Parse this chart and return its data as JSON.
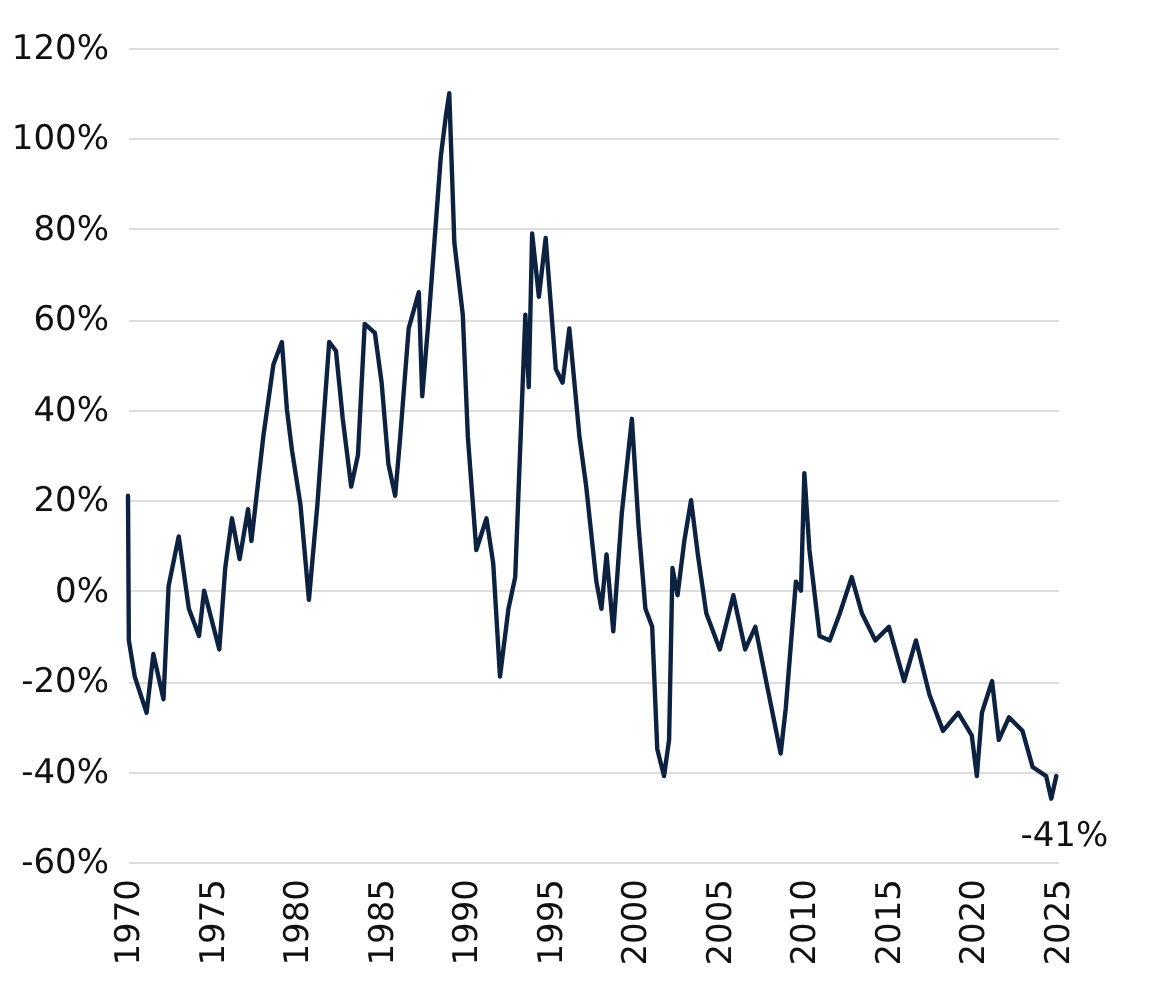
{
  "chart_data": {
    "type": "line",
    "x": [
      1970.0,
      1970.05,
      1970.4,
      1971.1,
      1971.5,
      1972.1,
      1972.4,
      1973.0,
      1973.6,
      1974.2,
      1974.5,
      1975.4,
      1975.75,
      1976.15,
      1976.6,
      1977.1,
      1977.3,
      1978.0,
      1978.6,
      1979.1,
      1979.4,
      1979.7,
      1980.2,
      1980.7,
      1981.2,
      1981.9,
      1982.3,
      1982.7,
      1983.2,
      1983.6,
      1984.0,
      1984.6,
      1985.0,
      1985.4,
      1985.8,
      1986.1,
      1986.6,
      1987.2,
      1987.4,
      1987.8,
      1988.2,
      1988.5,
      1988.8,
      1989.0,
      1989.3,
      1989.8,
      1990.1,
      1990.6,
      1991.2,
      1991.6,
      1992.0,
      1992.5,
      1992.9,
      1993.5,
      1993.7,
      1993.9,
      1994.3,
      1994.7,
      1995.3,
      1995.7,
      1996.1,
      1996.7,
      1997.1,
      1997.7,
      1998.0,
      1998.3,
      1998.7,
      1999.2,
      1999.8,
      2000.2,
      2000.6,
      2001.0,
      2001.3,
      2001.7,
      2002.0,
      2002.2,
      2002.5,
      2002.9,
      2003.3,
      2003.7,
      2004.2,
      2005.0,
      2005.8,
      2006.5,
      2007.1,
      2007.9,
      2008.6,
      2008.9,
      2009.5,
      2009.8,
      2010.0,
      2010.3,
      2010.9,
      2011.5,
      2012.1,
      2012.8,
      2013.4,
      2014.2,
      2015.0,
      2015.9,
      2016.6,
      2017.4,
      2018.2,
      2019.1,
      2019.9,
      2020.2,
      2020.5,
      2021.1,
      2021.5,
      2022.1,
      2022.9,
      2023.5,
      2024.3,
      2024.6,
      2024.9
    ],
    "series": [
      {
        "color": "#0d2240",
        "values": [
          21,
          -11,
          -19,
          -27,
          -14,
          -24,
          1,
          12,
          -4,
          -10,
          0,
          -13,
          5,
          16,
          7,
          18,
          11,
          34,
          50,
          55,
          40,
          31,
          19,
          -2,
          19,
          55,
          53,
          38,
          23,
          30,
          59,
          57,
          46,
          28,
          21,
          34,
          58,
          66,
          43,
          61,
          81,
          96,
          105,
          110,
          77,
          61,
          34,
          9,
          16,
          6,
          -19,
          -4,
          3,
          61,
          45,
          79,
          65,
          78,
          49,
          46,
          58,
          34,
          23,
          2,
          -4,
          8,
          -9,
          17,
          38,
          14,
          -4,
          -8,
          -35,
          -41,
          -33,
          5,
          -1,
          11,
          20,
          8,
          -5,
          -13,
          -1,
          -13,
          -8,
          -23,
          -36,
          -26,
          2,
          0,
          26,
          9,
          -10,
          -11,
          -5,
          3,
          -5,
          -11,
          -8,
          -20,
          -11,
          -23,
          -31,
          -27,
          -32,
          -41,
          -27,
          -20,
          -33,
          -28,
          -31,
          -39,
          -41,
          -46,
          -41
        ]
      }
    ],
    "xlim": [
      1970,
      2025
    ],
    "xticks": [
      1970,
      1975,
      1980,
      1985,
      1990,
      1995,
      2000,
      2005,
      2010,
      2015,
      2020,
      2025
    ],
    "ylim": [
      -60,
      120
    ],
    "yticks": [
      {
        "value": -60,
        "label": "-60%"
      },
      {
        "value": -40,
        "label": "-40%"
      },
      {
        "value": -20,
        "label": "-20%"
      },
      {
        "value": 0,
        "label": "0%"
      },
      {
        "value": 20,
        "label": "20%"
      },
      {
        "value": 40,
        "label": "40%"
      },
      {
        "value": 60,
        "label": "60%"
      },
      {
        "value": 80,
        "label": "80%"
      },
      {
        "value": 100,
        "label": "100%"
      },
      {
        "value": 120,
        "label": "120%"
      }
    ],
    "grid": "y",
    "line_style": "solid",
    "annotations": [
      {
        "text": "-41%",
        "x": 2024.9,
        "y": -41
      }
    ]
  }
}
